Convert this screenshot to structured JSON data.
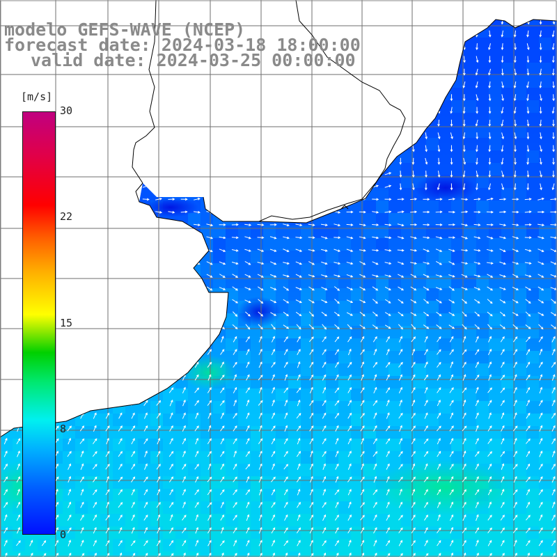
{
  "title": {
    "model": "modelo GEFS-WAVE (NCEP)",
    "forecast": "forecast date: 2024-03-18 18:00:00",
    "valid": "valid date: 2024-03-25 00:00:00"
  },
  "colorbar": {
    "unit": "[m/s]",
    "ticks": [
      "30",
      "22",
      "15",
      "8",
      "0"
    ],
    "range": [
      0,
      30
    ]
  },
  "colors": {
    "land": "#ffffff",
    "coast": "#000000",
    "grid": "#6e6e6e",
    "arrow": "#ffffff",
    "low_wind": "#0050ff",
    "mid_wind": "#00d8f0"
  },
  "map": {
    "field": "wind speed and direction",
    "dominant_direction": "north-northeast offshore, southerly inside the estuary",
    "wind_range_ms": [
      2,
      11
    ]
  }
}
